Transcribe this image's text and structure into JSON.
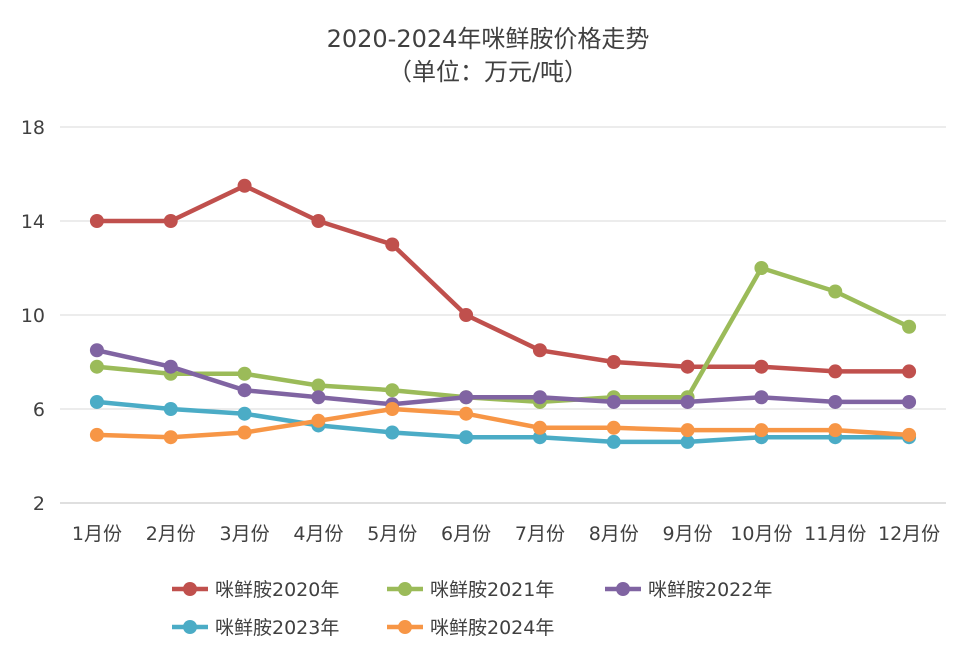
{
  "chart_data": {
    "type": "line",
    "title": "2020-2024年咪鲜胺价格走势",
    "subtitle": "（单位：万元/吨）",
    "xlabel": "",
    "ylabel": "",
    "categories": [
      "1月份",
      "2月份",
      "3月份",
      "4月份",
      "5月份",
      "6月份",
      "7月份",
      "8月份",
      "9月份",
      "10月份",
      "11月份",
      "12月份"
    ],
    "yticks": [
      2,
      6,
      10,
      14,
      18
    ],
    "ytick_labels": [
      "2",
      "6",
      "10",
      "14",
      "18"
    ],
    "ylim": [
      2,
      18
    ],
    "grid": true,
    "legend_position": "bottom",
    "series": [
      {
        "name": "咪鲜胺2020年",
        "color": "#c0504d",
        "values": [
          14.0,
          14.0,
          15.5,
          14.0,
          13.0,
          10.0,
          8.5,
          8.0,
          7.8,
          7.8,
          7.6,
          7.6
        ]
      },
      {
        "name": "咪鲜胺2021年",
        "color": "#9bbb59",
        "values": [
          7.8,
          7.5,
          7.5,
          7.0,
          6.8,
          6.5,
          6.3,
          6.5,
          6.5,
          12.0,
          11.0,
          9.5
        ]
      },
      {
        "name": "咪鲜胺2022年",
        "color": "#8064a2",
        "values": [
          8.5,
          7.8,
          6.8,
          6.5,
          6.2,
          6.5,
          6.5,
          6.3,
          6.3,
          6.5,
          6.3,
          6.3
        ]
      },
      {
        "name": "咪鲜胺2023年",
        "color": "#4bacc6",
        "values": [
          6.3,
          6.0,
          5.8,
          5.3,
          5.0,
          4.8,
          4.8,
          4.6,
          4.6,
          4.8,
          4.8,
          4.8
        ]
      },
      {
        "name": "咪鲜胺2024年",
        "color": "#f79646",
        "values": [
          4.9,
          4.8,
          5.0,
          5.5,
          6.0,
          5.8,
          5.2,
          5.2,
          5.1,
          5.1,
          5.1,
          4.9
        ]
      }
    ]
  }
}
